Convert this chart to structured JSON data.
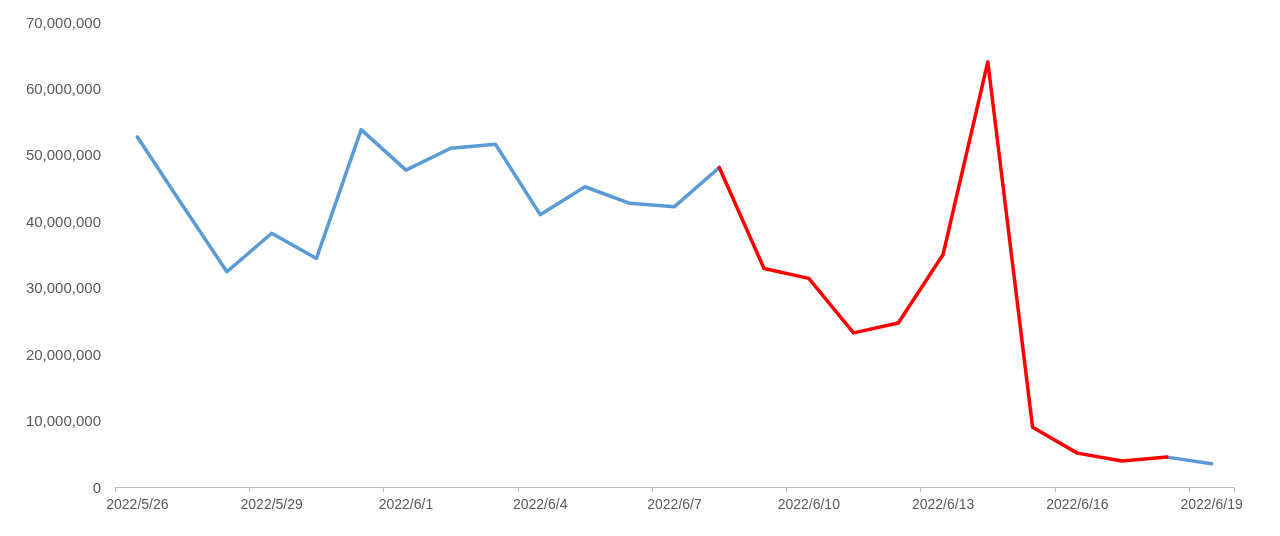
{
  "chart_data": {
    "type": "line",
    "categories": [
      "2022/5/26",
      null,
      null,
      "2022/5/29",
      null,
      null,
      "2022/6/1",
      null,
      null,
      "2022/6/4",
      null,
      null,
      "2022/6/7",
      null,
      null,
      "2022/6/10",
      null,
      null,
      "2022/6/13",
      null,
      null,
      "2022/6/16",
      null,
      null,
      "2022/6/19"
    ],
    "series": [
      {
        "color": "#5b9bd5",
        "values": [
          52700000,
          42500000,
          32400000,
          38200000,
          34400000,
          53800000,
          47700000,
          51000000,
          51600000,
          41000000,
          45200000,
          42700000,
          42200000,
          48100000,
          null,
          null,
          null,
          null,
          null,
          null,
          null,
          null,
          null,
          4500000,
          3500000
        ]
      },
      {
        "color": "#ff0000",
        "values": [
          null,
          null,
          null,
          null,
          null,
          null,
          null,
          null,
          null,
          null,
          null,
          null,
          null,
          48100000,
          32900000,
          31400000,
          23200000,
          24700000,
          35000000,
          64000000,
          9000000,
          5100000,
          3900000,
          4500000,
          null
        ]
      }
    ],
    "ylim": [
      0,
      70000000
    ],
    "yticks": [
      {
        "value": 0,
        "label": "0"
      },
      {
        "value": 10000000,
        "label": "10,000,000"
      },
      {
        "value": 20000000,
        "label": "20,000,000"
      },
      {
        "value": 30000000,
        "label": "30,000,000"
      },
      {
        "value": 40000000,
        "label": "40,000,000"
      },
      {
        "value": 50000000,
        "label": "50,000,000"
      },
      {
        "value": 60000000,
        "label": "60,000,000"
      },
      {
        "value": 70000000,
        "label": "70,000,000"
      }
    ],
    "marker": "none",
    "line_style": "solid"
  }
}
